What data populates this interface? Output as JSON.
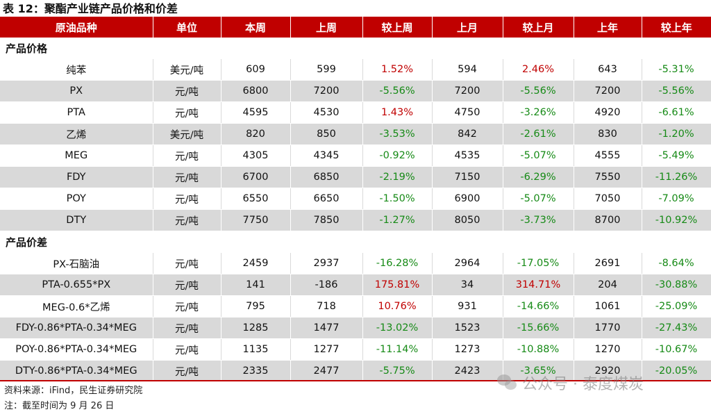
{
  "title": "表 12：聚酯产业链产品价格和价差",
  "headers": [
    "原油品种",
    "单位",
    "本周",
    "上周",
    "较上周",
    "上月",
    "较上月",
    "上年",
    "较上年"
  ],
  "sections": [
    {
      "name": "产品价格",
      "rows": [
        {
          "cells": [
            "纯苯",
            "美元/吨",
            "609",
            "599",
            "1.52%",
            "594",
            "2.46%",
            "643",
            "-5.31%"
          ],
          "colors": [
            "",
            "",
            "",
            "",
            "red",
            "",
            "red",
            "",
            "green"
          ]
        },
        {
          "cells": [
            "PX",
            "元/吨",
            "6800",
            "7200",
            "-5.56%",
            "7200",
            "-5.56%",
            "7200",
            "-5.56%"
          ],
          "colors": [
            "",
            "",
            "",
            "",
            "green",
            "",
            "green",
            "",
            "green"
          ]
        },
        {
          "cells": [
            "PTA",
            "元/吨",
            "4595",
            "4530",
            "1.43%",
            "4750",
            "-3.26%",
            "4920",
            "-6.61%"
          ],
          "colors": [
            "",
            "",
            "",
            "",
            "red",
            "",
            "green",
            "",
            "green"
          ]
        },
        {
          "cells": [
            "乙烯",
            "美元/吨",
            "820",
            "850",
            "-3.53%",
            "842",
            "-2.61%",
            "830",
            "-1.20%"
          ],
          "colors": [
            "",
            "",
            "",
            "",
            "green",
            "",
            "green",
            "",
            "green"
          ]
        },
        {
          "cells": [
            "MEG",
            "元/吨",
            "4305",
            "4345",
            "-0.92%",
            "4535",
            "-5.07%",
            "4555",
            "-5.49%"
          ],
          "colors": [
            "",
            "",
            "",
            "",
            "green",
            "",
            "green",
            "",
            "green"
          ]
        },
        {
          "cells": [
            "FDY",
            "元/吨",
            "6700",
            "6850",
            "-2.19%",
            "7150",
            "-6.29%",
            "7550",
            "-11.26%"
          ],
          "colors": [
            "",
            "",
            "",
            "",
            "green",
            "",
            "green",
            "",
            "green"
          ]
        },
        {
          "cells": [
            "POY",
            "元/吨",
            "6550",
            "6650",
            "-1.50%",
            "6900",
            "-5.07%",
            "7050",
            "-7.09%"
          ],
          "colors": [
            "",
            "",
            "",
            "",
            "green",
            "",
            "green",
            "",
            "green"
          ]
        },
        {
          "cells": [
            "DTY",
            "元/吨",
            "7750",
            "7850",
            "-1.27%",
            "8050",
            "-3.73%",
            "8700",
            "-10.92%"
          ],
          "colors": [
            "",
            "",
            "",
            "",
            "green",
            "",
            "green",
            "",
            "green"
          ]
        }
      ]
    },
    {
      "name": "产品价差",
      "rows": [
        {
          "cells": [
            "PX-石脑油",
            "元/吨",
            "2459",
            "2937",
            "-16.28%",
            "2964",
            "-17.05%",
            "2691",
            "-8.64%"
          ],
          "colors": [
            "",
            "",
            "",
            "",
            "green",
            "",
            "green",
            "",
            "green"
          ]
        },
        {
          "cells": [
            "PTA-0.655*PX",
            "元/吨",
            "141",
            "-186",
            "175.81%",
            "34",
            "314.71%",
            "204",
            "-30.88%"
          ],
          "colors": [
            "",
            "",
            "",
            "",
            "red",
            "",
            "red",
            "",
            "green"
          ]
        },
        {
          "cells": [
            "MEG-0.6*乙烯",
            "元/吨",
            "795",
            "718",
            "10.76%",
            "931",
            "-14.66%",
            "1061",
            "-25.09%"
          ],
          "colors": [
            "",
            "",
            "",
            "",
            "red",
            "",
            "green",
            "",
            "green"
          ]
        },
        {
          "cells": [
            "FDY-0.86*PTA-0.34*MEG",
            "元/吨",
            "1285",
            "1477",
            "-13.02%",
            "1523",
            "-15.66%",
            "1770",
            "-27.43%"
          ],
          "colors": [
            "",
            "",
            "",
            "",
            "green",
            "",
            "green",
            "",
            "green"
          ]
        },
        {
          "cells": [
            "POY-0.86*PTA-0.34*MEG",
            "元/吨",
            "1135",
            "1277",
            "-11.14%",
            "1273",
            "-10.88%",
            "1270",
            "-10.67%"
          ],
          "colors": [
            "",
            "",
            "",
            "",
            "green",
            "",
            "green",
            "",
            "green"
          ]
        },
        {
          "cells": [
            "DTY-0.86*PTA-0.34*MEG",
            "元/吨",
            "2335",
            "2477",
            "-5.75%",
            "2423",
            "-3.65%",
            "2920",
            "-20.05%"
          ],
          "colors": [
            "",
            "",
            "",
            "",
            "green",
            "",
            "green",
            "",
            "green"
          ]
        }
      ]
    }
  ],
  "source": "资料来源：iFind，民生证券研究院",
  "note": "注：截至时间为 9 月 26 日",
  "watermark": "公众号 · 泰度煤炭",
  "colors": {
    "header_bg": "#c00000",
    "positive": "#c00000",
    "negative": "#168a16",
    "stripe": "#d9d9d9"
  }
}
